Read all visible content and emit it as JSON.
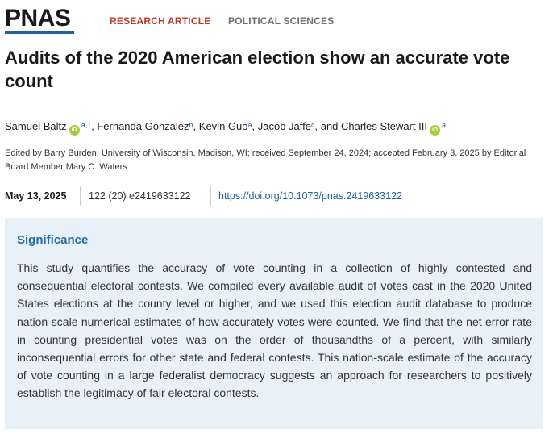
{
  "header": {
    "logo": "PNAS",
    "article_type": "RESEARCH ARTICLE",
    "subject": "POLITICAL SCIENCES"
  },
  "title": "Audits of the 2020 American election show an accurate vote count",
  "authors": [
    {
      "name": "Samuel Baltz",
      "orcid": true,
      "affil": "a,1"
    },
    {
      "name": "Fernanda Gonzalez",
      "orcid": false,
      "affil": "b"
    },
    {
      "name": "Kevin Guo",
      "orcid": false,
      "affil": "a"
    },
    {
      "name": "Jacob Jaffe",
      "orcid": false,
      "affil": "c"
    },
    {
      "name": "Charles Stewart III",
      "orcid": true,
      "affil": "a"
    }
  ],
  "orcid_label": "iD",
  "authors_separator": ", ",
  "authors_and": ", and ",
  "edited_by": "Edited by Barry Burden, University of Wisconsin, Madison, WI; received September 24, 2024; accepted February 3, 2025 by Editorial Board Member Mary C. Waters",
  "meta": {
    "date": "May 13, 2025",
    "volume": "122 (20) e2419633122",
    "doi": "https://doi.org/10.1073/pnas.2419633122"
  },
  "significance": {
    "heading": "Significance",
    "text": "This study quantifies the accuracy of vote counting in a collection of highly contested and consequential electoral contests. We compiled every available audit of votes cast in the 2020 United States elections at the county level or higher, and we used this election audit database to produce nation-scale numerical estimates of how accurately votes were counted. We find that the net error rate in counting presidential votes was on the order of thousandths of a percent, with similarly inconsequential errors for other state and federal contests. This nation-scale estimate of the accuracy of vote counting in a large federalist democracy suggests an approach for researchers to positively establish the legitimacy of fair electoral contests."
  },
  "colors": {
    "brand_blue": "#1f5fa6",
    "article_type_red": "#c0392b",
    "orcid_green": "#a6ce39",
    "significance_bg": "#e9f1f8"
  }
}
